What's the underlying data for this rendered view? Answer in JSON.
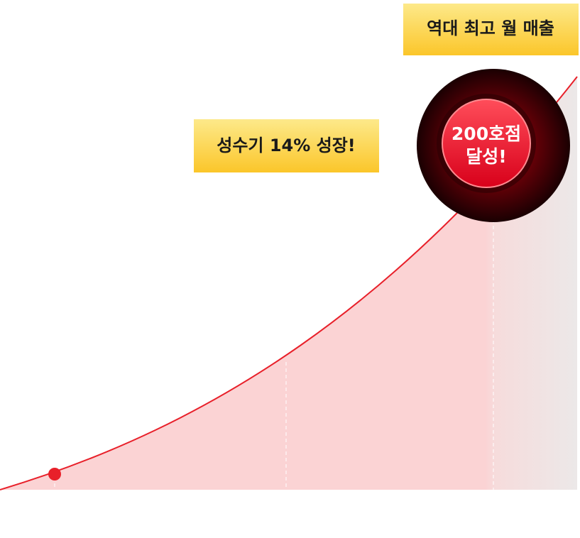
{
  "callouts": {
    "growth": "성수기 14% 성장!",
    "record": "역대 최고 월 매출"
  },
  "milestone": {
    "lines": [
      "200호점",
      "달성!"
    ]
  }
}
